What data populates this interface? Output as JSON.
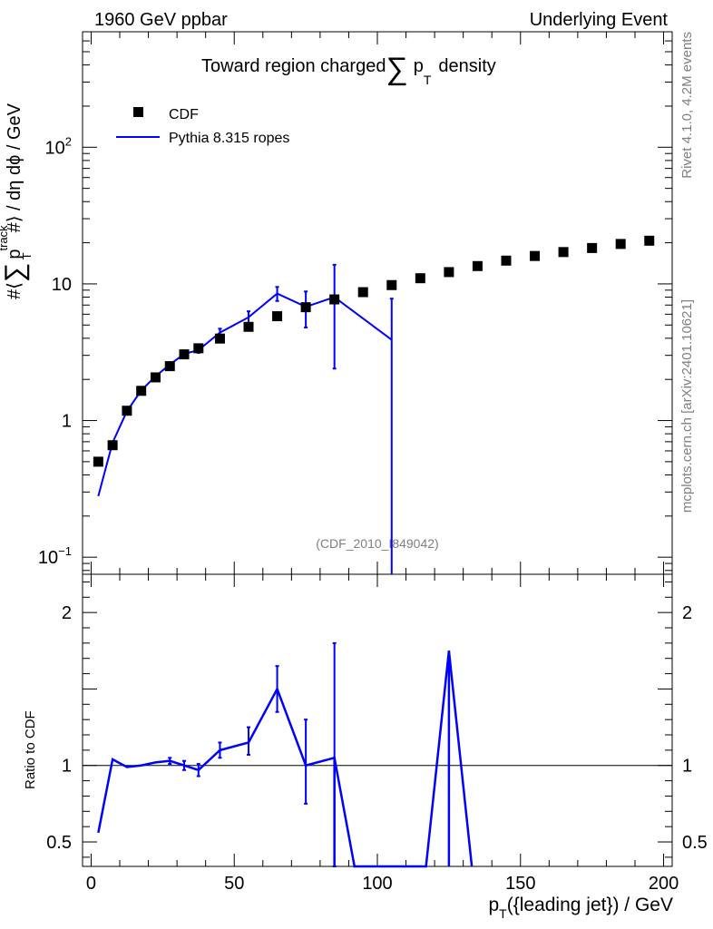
{
  "header": {
    "left": "1960 GeV ppbar",
    "right": "Underlying Event"
  },
  "title_parts": {
    "pre": "Toward region charged",
    "sum": "∑",
    "p": "p",
    "sub": "T",
    "post": "density"
  },
  "side_labels": {
    "rivet": "Rivet 4.1.0,  4.2M events",
    "mcplots": "mcplots.cern.ch [arXiv:2401.10621]"
  },
  "watermark": "(CDF_2010_I849042)",
  "ylabel_parts": {
    "pre": "#⟨",
    "sum": "∑",
    "p": "p",
    "sup": "track",
    "sub": "T",
    "post": "#⟩ / dη dϕ / GeV"
  },
  "ratio_ylabel": "Ratio to CDF",
  "xlabel_parts": {
    "p": "p",
    "sub": "T",
    "post": "({leading jet}) / GeV"
  },
  "legend": {
    "data": "CDF",
    "mc": "Pythia 8.315 ropes"
  },
  "colors": {
    "data": "#000000",
    "mc": "#0000ff",
    "sidetext": "#808080"
  },
  "chart_data": [
    {
      "type": "scatter",
      "panel": "main",
      "yscale": "log",
      "xlim": [
        -3,
        203
      ],
      "ylim": [
        0.075,
        700
      ],
      "x_ticks": [
        0,
        50,
        100,
        150,
        200
      ],
      "y_tick_labels": [
        {
          "value": 0.1,
          "base": "10",
          "exp": "−1"
        },
        {
          "value": 1,
          "base": "1",
          "exp": ""
        },
        {
          "value": 10,
          "base": "10",
          "exp": ""
        },
        {
          "value": 100,
          "base": "10",
          "exp": "2"
        }
      ],
      "series": [
        {
          "name": "CDF",
          "style": "markers",
          "x": [
            2.5,
            7.5,
            12.5,
            17.5,
            22.5,
            27.5,
            32.5,
            37.5,
            45,
            55,
            65,
            75,
            85,
            95,
            105,
            115,
            125,
            135,
            145,
            155,
            165,
            175,
            185,
            195
          ],
          "y": [
            0.5,
            0.66,
            1.18,
            1.65,
            2.07,
            2.5,
            3.05,
            3.38,
            3.98,
            4.85,
            5.8,
            6.75,
            7.7,
            8.7,
            9.8,
            11.0,
            12.2,
            13.5,
            14.8,
            16.0,
            17.1,
            18.3,
            19.6,
            20.7
          ]
        },
        {
          "name": "Pythia 8.315 ropes",
          "style": "line",
          "x": [
            2.5,
            7.5,
            12.5,
            17.5,
            22.5,
            27.5,
            32.5,
            37.5,
            45,
            55,
            65,
            75,
            85,
            105
          ],
          "y": [
            0.28,
            0.69,
            1.17,
            1.66,
            2.11,
            2.57,
            3.07,
            3.28,
            4.4,
            5.7,
            8.5,
            6.8,
            8.0,
            3.9
          ],
          "err_lo": [
            0,
            0,
            0,
            0,
            0,
            0.1,
            0.1,
            0.15,
            0.3,
            0.6,
            1.0,
            2.0,
            5.6,
            3.88
          ],
          "err_hi": [
            0,
            0,
            0,
            0,
            0,
            0.1,
            0.1,
            0.15,
            0.3,
            0.6,
            1.0,
            2.0,
            5.8,
            3.9
          ]
        }
      ]
    },
    {
      "type": "line",
      "panel": "ratio",
      "xlim": [
        -3,
        203
      ],
      "ylim": [
        0.34,
        2.25
      ],
      "reference": 1,
      "y_ticks": [
        0.5,
        1,
        2
      ],
      "y_tick_labels": [
        "0.5",
        "1",
        "2"
      ],
      "series": [
        {
          "name": "Pythia 8.315 ropes / CDF",
          "x": [
            2.5,
            7.5,
            12.5,
            17.5,
            22.5,
            27.5,
            32.5,
            37.5,
            45,
            55,
            65,
            75,
            85,
            92,
            117,
            125,
            133
          ],
          "y": [
            0.56,
            1.04,
            0.99,
            1.0,
            1.02,
            1.03,
            1.0,
            0.97,
            1.1,
            1.15,
            1.5,
            1.0,
            1.05,
            0.34,
            0.34,
            1.75,
            0.34
          ],
          "err_lo": [
            0,
            0,
            0,
            0,
            0,
            0.02,
            0.03,
            0.04,
            0.05,
            0.08,
            0.15,
            0.25,
            0.71,
            0,
            0,
            0,
            0
          ],
          "err_hi": [
            0,
            0,
            0,
            0,
            0,
            0.02,
            0.03,
            0.04,
            0.05,
            0.1,
            0.15,
            0.3,
            0.75,
            0,
            0,
            0,
            0
          ]
        }
      ]
    }
  ]
}
